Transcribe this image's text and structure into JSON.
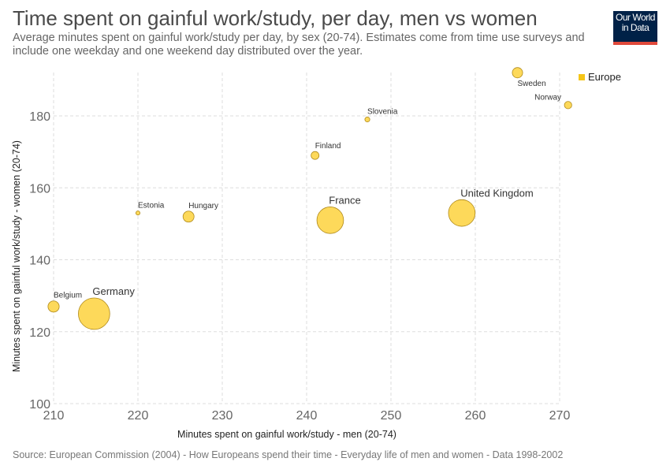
{
  "header": {
    "title": "Time spent on gainful work/study, per day, men vs women",
    "subtitle": "Average minutes spent on gainful work/study per day, by sex (20-74). Estimates come from time use surveys and include one weekday and one weekend day distributed over the year.",
    "logo_line1": "Our World",
    "logo_line2": "in Data"
  },
  "source": "Source: European Commission (2004) - How Europeans spend their time - Everyday life of men and women - Data 1998-2002",
  "colors": {
    "point_fill": "#fdd95a",
    "point_stroke": "#b08a1a",
    "grid": "#dddddd",
    "legend": "#f5c518"
  },
  "chart_data": {
    "type": "scatter",
    "title": "Time spent on gainful work/study, per day, men vs women",
    "xlabel": "Minutes spent on gainful work/study - men (20-74)",
    "ylabel": "Minutes spent on gainful work/study - women (20-74)",
    "xlim": [
      210,
      270
    ],
    "ylim": [
      100,
      190
    ],
    "x_ticks": [
      210,
      220,
      230,
      240,
      250,
      260,
      270
    ],
    "y_ticks": [
      100,
      120,
      140,
      160,
      180
    ],
    "grid": true,
    "legend": {
      "placement": "top-right",
      "entries": [
        "Europe"
      ]
    },
    "points": [
      {
        "country": "Belgium",
        "x": 210,
        "y": 127,
        "size": 10.4
      },
      {
        "country": "Germany",
        "x": 214.8,
        "y": 125,
        "size": 82
      },
      {
        "country": "Estonia",
        "x": 220,
        "y": 153,
        "size": 1.4
      },
      {
        "country": "Hungary",
        "x": 226,
        "y": 152,
        "size": 10.1
      },
      {
        "country": "Finland",
        "x": 241,
        "y": 169,
        "size": 5.2
      },
      {
        "country": "France",
        "x": 242.8,
        "y": 151,
        "size": 59
      },
      {
        "country": "Slovenia",
        "x": 247.2,
        "y": 179,
        "size": 2
      },
      {
        "country": "United Kingdom",
        "x": 258.4,
        "y": 153,
        "size": 59
      },
      {
        "country": "Sweden",
        "x": 265,
        "y": 192,
        "size": 8.9
      },
      {
        "country": "Norway",
        "x": 271,
        "y": 183,
        "size": 4.5
      }
    ]
  }
}
